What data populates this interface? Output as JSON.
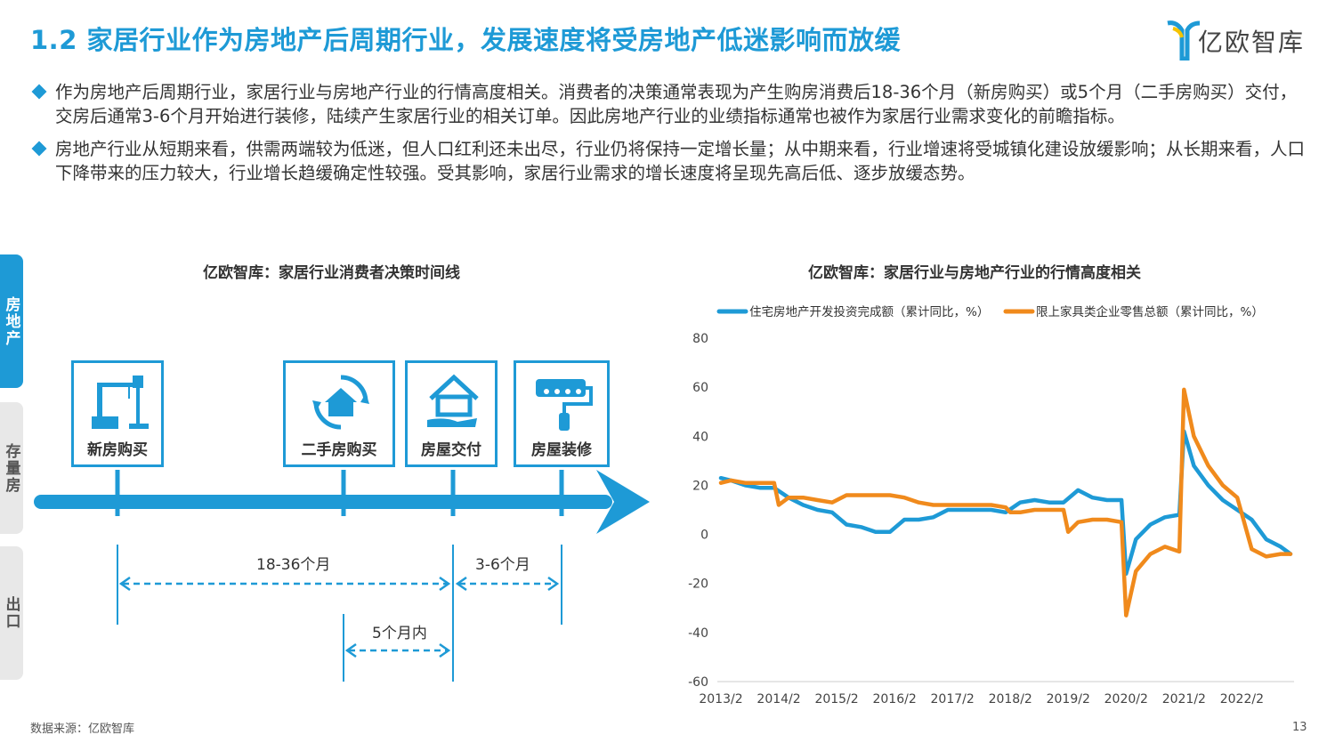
{
  "header": {
    "title": "1.2 家居行业作为房地产后周期行业，发展速度将受房地产低迷影响而放缓",
    "logo_text": "亿欧智库"
  },
  "bullets": [
    "作为房地产后周期行业，家居行业与房地产行业的行情高度相关。消费者的决策通常表现为产生购房消费后18-36个月（新房购买）或5个月（二手房购买）交付，交房后通常3-6个月开始进行装修，陆续产生家居行业的相关订单。因此房地产行业的业绩指标通常也被作为家居行业需求变化的前瞻指标。",
    "房地产行业从短期来看，供需两端较为低迷，但人口红利还未出尽，行业仍将保持一定增长量；从中期来看，行业增速将受城镇化建设放缓影响；从长期来看，人口下降带来的压力较大，行业增长趋缓确定性较强。受其影响，家居行业需求的增长速度将呈现先高后低、逐步放缓态势。"
  ],
  "side_tabs": [
    {
      "label": "房地产",
      "active": true
    },
    {
      "label": "存量房",
      "active": false
    },
    {
      "label": "出口",
      "active": false
    }
  ],
  "timeline": {
    "title": "亿欧智库：家居行业消费者决策时间线",
    "stages": [
      {
        "label": "新房购买",
        "icon": "construction-crane-icon"
      },
      {
        "label": "二手房购买",
        "icon": "house-cycle-icon"
      },
      {
        "label": "房屋交付",
        "icon": "house-in-hand-icon"
      },
      {
        "label": "房屋装修",
        "icon": "paint-roller-icon"
      }
    ],
    "durations": {
      "new_to_delivery": "18-36个月",
      "delivery_to_decoration": "3-6个月",
      "second_hand_to_delivery": "5个月内"
    }
  },
  "chart_data": {
    "type": "line",
    "title": "亿欧智库：家居行业与房地产行业的行情高度相关",
    "xlabel": "",
    "ylabel": "",
    "ylim": [
      -60,
      80
    ],
    "yticks": [
      80,
      60,
      40,
      20,
      0,
      -20,
      -40,
      -60
    ],
    "xticks": [
      "2013/2",
      "2014/2",
      "2015/2",
      "2016/2",
      "2017/2",
      "2018/2",
      "2019/2",
      "2020/2",
      "2021/2",
      "2022/2"
    ],
    "x_start_year": 2013.08,
    "grid": false,
    "legend": "top",
    "series": [
      {
        "name": "住宅房地产开发投资完成额（累计同比，%）",
        "color": "#1e9ad6",
        "x": [
          2013.08,
          2013.25,
          2013.5,
          2013.75,
          2014.0,
          2014.25,
          2014.5,
          2014.75,
          2015.0,
          2015.25,
          2015.5,
          2015.75,
          2016.0,
          2016.25,
          2016.5,
          2016.75,
          2017.0,
          2017.25,
          2017.5,
          2017.75,
          2018.0,
          2018.25,
          2018.5,
          2018.75,
          2019.0,
          2019.25,
          2019.5,
          2019.75,
          2020.0,
          2020.08,
          2020.25,
          2020.5,
          2020.75,
          2021.0,
          2021.08,
          2021.25,
          2021.5,
          2021.75,
          2022.0,
          2022.25,
          2022.5,
          2022.75,
          2022.92
        ],
        "values": [
          23,
          22,
          20,
          19,
          19,
          15,
          12,
          10,
          9,
          4,
          3,
          1,
          1,
          6,
          6,
          7,
          10,
          10,
          10,
          10,
          9,
          13,
          14,
          13,
          13,
          18,
          15,
          14,
          14,
          -16,
          -2,
          4,
          7,
          8,
          42,
          28,
          20,
          14,
          10,
          6,
          -2,
          -5,
          -8
        ]
      },
      {
        "name": "限上家具类企业零售总额（累计同比，%）",
        "color": "#f08a1c",
        "x": [
          2013.08,
          2013.25,
          2013.5,
          2013.75,
          2014.0,
          2014.08,
          2014.25,
          2014.5,
          2014.75,
          2015.0,
          2015.25,
          2015.5,
          2015.75,
          2016.0,
          2016.25,
          2016.5,
          2016.75,
          2017.0,
          2017.25,
          2017.5,
          2017.75,
          2018.0,
          2018.08,
          2018.25,
          2018.5,
          2018.75,
          2019.0,
          2019.08,
          2019.25,
          2019.5,
          2019.75,
          2020.0,
          2020.08,
          2020.25,
          2020.5,
          2020.75,
          2021.0,
          2021.08,
          2021.25,
          2021.5,
          2021.75,
          2022.0,
          2022.25,
          2022.5,
          2022.75,
          2022.92
        ],
        "values": [
          21,
          22,
          21,
          21,
          21,
          12,
          15,
          15,
          14,
          13,
          16,
          16,
          16,
          16,
          15,
          13,
          12,
          12,
          12,
          12,
          12,
          11,
          9,
          9,
          10,
          10,
          10,
          1,
          5,
          6,
          6,
          5,
          -33,
          -15,
          -8,
          -5,
          -7,
          59,
          40,
          28,
          20,
          15,
          -6,
          -9,
          -8,
          -8
        ]
      }
    ]
  },
  "footer": {
    "source": "数据来源：亿欧智库",
    "page": "13"
  }
}
